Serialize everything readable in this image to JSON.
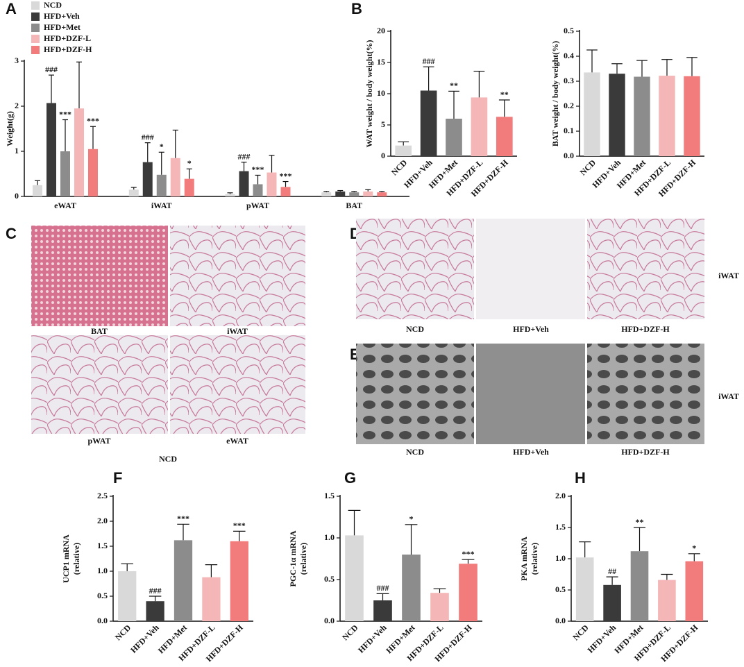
{
  "panel_labels": [
    "A",
    "B",
    "C",
    "D",
    "E",
    "F",
    "G",
    "H"
  ],
  "figure_c": {
    "images": [
      "BAT",
      "iWAT",
      "pWAT",
      "eWAT"
    ],
    "group": "NCD"
  },
  "figure_d": {
    "images": [
      "NCD",
      "HFD+Veh",
      "HFD+DZF-H"
    ],
    "tissue": "iWAT"
  },
  "figure_e": {
    "images": [
      "NCD",
      "HFD+Veh",
      "HFD+DZF-H"
    ],
    "tissue": "iWAT"
  },
  "chart_data": [
    {
      "type": "grouped_bar",
      "ylabel": [
        "Weight(g)"
      ],
      "categories": [
        "eWAT",
        "iWAT",
        "pWAT",
        "BAT"
      ],
      "ylim": [
        0,
        3
      ],
      "yticks": [
        0,
        1,
        2,
        3
      ],
      "series": [
        {
          "name": "NCD",
          "color": "#d9d9d9",
          "values": [
            0.25,
            0.15,
            0.05,
            0.09
          ],
          "errors": [
            0.1,
            0.05,
            0.03,
            0.02
          ],
          "annotations": [
            null,
            null,
            null,
            null
          ]
        },
        {
          "name": "HFD+Veh",
          "color": "#3a3a3a",
          "values": [
            2.07,
            0.76,
            0.56,
            0.11
          ],
          "errors": [
            0.62,
            0.43,
            0.2,
            0.02
          ],
          "annotations": [
            "###",
            "###",
            "###",
            null
          ]
        },
        {
          "name": "HFD+Met",
          "color": "#8c8c8c",
          "values": [
            1.0,
            0.48,
            0.27,
            0.09
          ],
          "errors": [
            0.7,
            0.5,
            0.2,
            0.02
          ],
          "annotations": [
            "***",
            "*",
            "***",
            null
          ]
        },
        {
          "name": "HFD+DZF-L",
          "color": "#f4b6b6",
          "values": [
            1.95,
            0.85,
            0.53,
            0.11
          ],
          "errors": [
            1.03,
            0.62,
            0.38,
            0.04
          ],
          "annotations": [
            null,
            null,
            null,
            null
          ]
        },
        {
          "name": "HFD+DZF-H",
          "color": "#f27b7b",
          "values": [
            1.05,
            0.39,
            0.21,
            0.09
          ],
          "errors": [
            0.5,
            0.22,
            0.12,
            0.02
          ],
          "annotations": [
            "***",
            "*",
            "***",
            null
          ]
        }
      ]
    },
    {
      "type": "bar",
      "ylabel": [
        "WAT weight / body weight(%)"
      ],
      "categories": [
        "NCD",
        "HFD+Veh",
        "HFD+Met",
        "HFD+DZF-L",
        "HFD+DZF-H"
      ],
      "colors": [
        "#d9d9d9",
        "#3a3a3a",
        "#8c8c8c",
        "#f4b6b6",
        "#f27b7b"
      ],
      "values": [
        1.7,
        10.5,
        6.0,
        9.4,
        6.3
      ],
      "errors": [
        0.6,
        3.8,
        4.4,
        4.2,
        2.7
      ],
      "annotations": [
        null,
        "###",
        "**",
        null,
        "**"
      ],
      "ylim": [
        0,
        20
      ],
      "yticks": [
        0,
        5,
        10,
        15,
        20
      ]
    },
    {
      "type": "bar",
      "ylabel": [
        "BAT weight / body weight(%)"
      ],
      "categories": [
        "NCD",
        "HFD+Veh",
        "HFD+Met",
        "HFD+DZF-L",
        "HFD+DZF-H"
      ],
      "colors": [
        "#d9d9d9",
        "#3a3a3a",
        "#8c8c8c",
        "#f4b6b6",
        "#f27b7b"
      ],
      "values": [
        0.335,
        0.33,
        0.318,
        0.322,
        0.32
      ],
      "errors": [
        0.09,
        0.04,
        0.065,
        0.065,
        0.075
      ],
      "annotations": [
        null,
        null,
        null,
        null,
        null
      ],
      "ylim": [
        0,
        0.5
      ],
      "yticks": [
        {
          "value": 0,
          "label": "0.0"
        },
        0.1,
        0.2,
        0.3,
        0.4,
        0.5
      ]
    },
    {
      "type": "bar",
      "ylabel": [
        "UCP1 mRNA",
        "(relative)"
      ],
      "categories": [
        "NCD",
        "HFD+Veh",
        "HFD+Met",
        "HFD+DZF-L",
        "HFD+DZF-H"
      ],
      "colors": [
        "#d9d9d9",
        "#3a3a3a",
        "#8c8c8c",
        "#f4b6b6",
        "#f27b7b"
      ],
      "values": [
        1.0,
        0.4,
        1.62,
        0.88,
        1.6
      ],
      "errors": [
        0.15,
        0.1,
        0.32,
        0.25,
        0.2
      ],
      "annotations": [
        null,
        "###",
        "***",
        null,
        "***"
      ],
      "ylim": [
        0,
        2.5
      ],
      "yticks": [
        {
          "value": 0,
          "label": "0.0"
        },
        0.5,
        {
          "value": 1,
          "label": "1.0"
        },
        1.5,
        {
          "value": 2,
          "label": "2.0"
        },
        2.5
      ]
    },
    {
      "type": "bar",
      "ylabel": [
        "PGC-1α mRNA",
        "(relative)"
      ],
      "categories": [
        "NCD",
        "HFD+Veh",
        "HFD+Met",
        "HFD+DZF-L",
        "HFD+DZF-H"
      ],
      "colors": [
        "#d9d9d9",
        "#3a3a3a",
        "#8c8c8c",
        "#f4b6b6",
        "#f27b7b"
      ],
      "values": [
        1.03,
        0.25,
        0.8,
        0.34,
        0.69
      ],
      "errors": [
        0.3,
        0.08,
        0.36,
        0.05,
        0.05
      ],
      "annotations": [
        null,
        "###",
        "*",
        null,
        "***"
      ],
      "ylim": [
        0,
        1.5
      ],
      "yticks": [
        {
          "value": 0,
          "label": "0.0"
        },
        0.5,
        {
          "value": 1,
          "label": "1.0"
        },
        1.5
      ]
    },
    {
      "type": "bar",
      "ylabel": [
        "PKA mRNA",
        "(relative)"
      ],
      "categories": [
        "NCD",
        "HFD+Veh",
        "HFD+Met",
        "HFD+DZF-L",
        "HFD+DZF-H"
      ],
      "colors": [
        "#d9d9d9",
        "#3a3a3a",
        "#8c8c8c",
        "#f4b6b6",
        "#f27b7b"
      ],
      "values": [
        1.02,
        0.58,
        1.12,
        0.66,
        0.96
      ],
      "errors": [
        0.25,
        0.13,
        0.38,
        0.09,
        0.12
      ],
      "annotations": [
        null,
        "##",
        "**",
        null,
        "*"
      ],
      "ylim": [
        0,
        2
      ],
      "yticks": [
        {
          "value": 0,
          "label": "0.0"
        },
        0.5,
        {
          "value": 1,
          "label": "1.0"
        },
        1.5,
        {
          "value": 2,
          "label": "2.0"
        }
      ]
    }
  ]
}
